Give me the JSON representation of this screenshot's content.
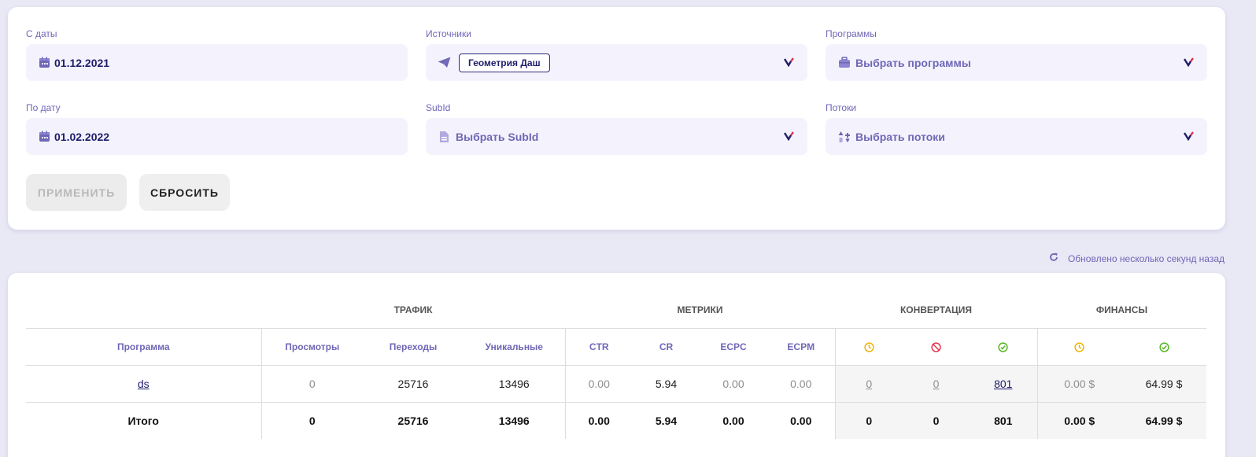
{
  "filters": {
    "from_date": {
      "label": "С даты",
      "value": "01.12.2021"
    },
    "to_date": {
      "label": "По дату",
      "value": "01.02.2022"
    },
    "sources": {
      "label": "Источники",
      "chip": "Геометрия Даш"
    },
    "subid": {
      "label": "SubId",
      "placeholder": "Выбрать SubId"
    },
    "programs": {
      "label": "Программы",
      "placeholder": "Выбрать программы"
    },
    "streams": {
      "label": "Потоки",
      "placeholder": "Выбрать потоки"
    }
  },
  "buttons": {
    "apply": "ПРИМЕНИТЬ",
    "reset": "СБРОСИТЬ"
  },
  "updated_text": "Обновлено несколько секунд назад",
  "table": {
    "groups": {
      "traffic": "ТРАФИК",
      "metrics": "МЕТРИКИ",
      "conversion": "КОНВЕРТАЦИЯ",
      "finance": "ФИНАНСЫ"
    },
    "columns": {
      "program": "Программа",
      "views": "Просмотры",
      "clicks": "Переходы",
      "unique": "Уникальные",
      "ctr": "CTR",
      "cr": "CR",
      "ecpc": "ECPC",
      "ecpm": "ECPM"
    },
    "row": {
      "program": "ds",
      "views": "0",
      "clicks": "25716",
      "unique": "13496",
      "ctr": "0.00",
      "cr": "5.94",
      "ecpc": "0.00",
      "ecpm": "0.00",
      "conv_pending": "0",
      "conv_rejected": "0",
      "conv_approved": "801",
      "fin_pending": "0.00 $",
      "fin_approved": "64.99 $"
    },
    "total": {
      "label": "Итого",
      "views": "0",
      "clicks": "25716",
      "unique": "13496",
      "ctr": "0.00",
      "cr": "5.94",
      "ecpc": "0.00",
      "ecpm": "0.00",
      "conv_pending": "0",
      "conv_rejected": "0",
      "conv_approved": "801",
      "fin_pending": "0.00 $",
      "fin_approved": "64.99 $"
    }
  },
  "colors": {
    "accent": "#6f67b6",
    "dark_text": "#1f1d6b",
    "pending": "#f0b400",
    "rejected": "#e5334b",
    "approved": "#56b61f"
  }
}
